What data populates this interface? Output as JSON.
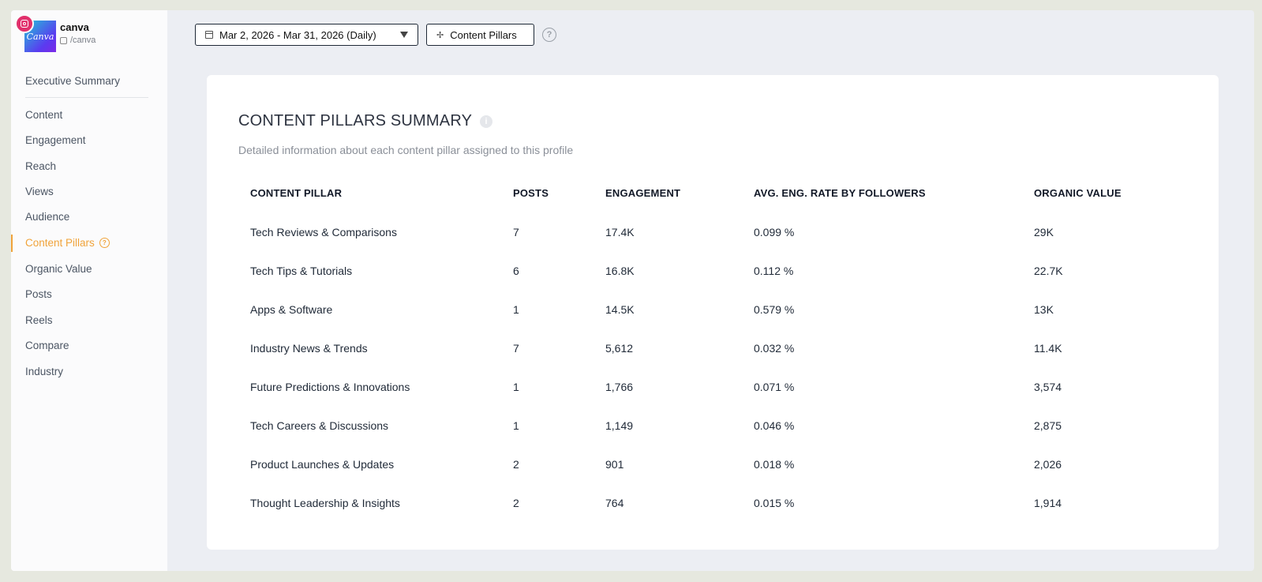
{
  "profile": {
    "name": "canva",
    "handle": "/canva",
    "logo_text": "Canva"
  },
  "sidebar": {
    "items": [
      {
        "label": "Executive Summary"
      },
      {
        "label": "Content"
      },
      {
        "label": "Engagement"
      },
      {
        "label": "Reach"
      },
      {
        "label": "Views"
      },
      {
        "label": "Audience"
      },
      {
        "label": "Content Pillars",
        "active": true
      },
      {
        "label": "Organic Value"
      },
      {
        "label": "Posts"
      },
      {
        "label": "Reels"
      },
      {
        "label": "Compare"
      },
      {
        "label": "Industry"
      }
    ]
  },
  "toolbar": {
    "date_range": "Mar 2, 2026 - Mar 31, 2026 (Daily)",
    "pillars_button": "Content Pillars",
    "help_glyph": "?"
  },
  "summary": {
    "title": "CONTENT PILLARS SUMMARY",
    "subtitle": "Detailed information about each content pillar assigned to this profile",
    "columns": [
      "CONTENT PILLAR",
      "POSTS",
      "ENGAGEMENT",
      "AVG. ENG. RATE BY FOLLOWERS",
      "ORGANIC VALUE"
    ],
    "rows": [
      [
        "Tech Reviews & Comparisons",
        "7",
        "17.4K",
        "0.099 %",
        "29K"
      ],
      [
        "Tech Tips & Tutorials",
        "6",
        "16.8K",
        "0.112 %",
        "22.7K"
      ],
      [
        "Apps & Software",
        "1",
        "14.5K",
        "0.579 %",
        "13K"
      ],
      [
        "Industry News & Trends",
        "7",
        "5,612",
        "0.032 %",
        "11.4K"
      ],
      [
        "Future Predictions & Innovations",
        "1",
        "1,766",
        "0.071 %",
        "3,574"
      ],
      [
        "Tech Careers & Discussions",
        "1",
        "1,149",
        "0.046 %",
        "2,875"
      ],
      [
        "Product Launches & Updates",
        "2",
        "901",
        "0.018 %",
        "2,026"
      ],
      [
        "Thought Leadership & Insights",
        "2",
        "764",
        "0.015 %",
        "1,914"
      ]
    ]
  },
  "colors": {
    "accent": "#f0a33a",
    "instagram": "#e1306c"
  }
}
